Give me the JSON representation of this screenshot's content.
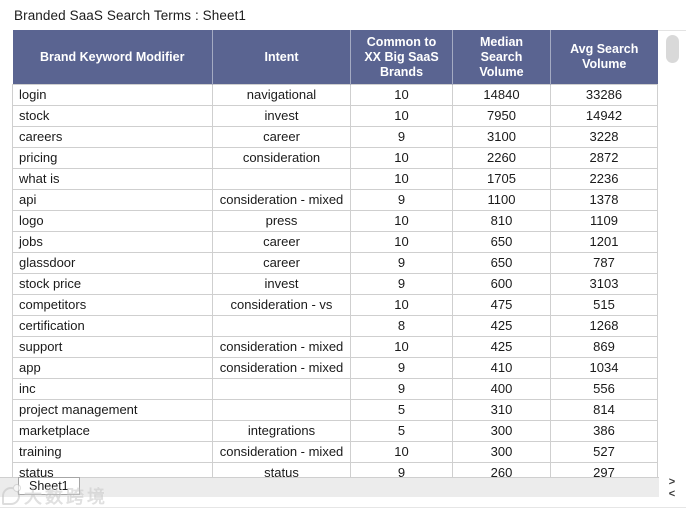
{
  "title": "Branded SaaS Search Terms : Sheet1",
  "table": {
    "columns": [
      "Brand Keyword Modifier",
      "Intent",
      "Common to XX Big SaaS Brands",
      "Median Search Volume",
      "Avg Search Volume"
    ],
    "column_slugs": [
      "brand-keyword-modifier",
      "intent",
      "common-to-xx-big-saas-brands",
      "median-search-volume",
      "avg-search-volume"
    ],
    "rows": [
      [
        "login",
        "navigational",
        "10",
        "14840",
        "33286"
      ],
      [
        "stock",
        "invest",
        "10",
        "7950",
        "14942"
      ],
      [
        "careers",
        "career",
        "9",
        "3100",
        "3228"
      ],
      [
        "pricing",
        "consideration",
        "10",
        "2260",
        "2872"
      ],
      [
        "what is",
        "",
        "10",
        "1705",
        "2236"
      ],
      [
        "api",
        "consideration - mixed",
        "9",
        "1100",
        "1378"
      ],
      [
        "logo",
        "press",
        "10",
        "810",
        "1109"
      ],
      [
        "jobs",
        "career",
        "10",
        "650",
        "1201"
      ],
      [
        "glassdoor",
        "career",
        "9",
        "650",
        "787"
      ],
      [
        "stock price",
        "invest",
        "9",
        "600",
        "3103"
      ],
      [
        "competitors",
        "consideration - vs",
        "10",
        "475",
        "515"
      ],
      [
        "certification",
        "",
        "8",
        "425",
        "1268"
      ],
      [
        "support",
        "consideration - mixed",
        "10",
        "425",
        "869"
      ],
      [
        "app",
        "consideration - mixed",
        "9",
        "410",
        "1034"
      ],
      [
        "inc",
        "",
        "9",
        "400",
        "556"
      ],
      [
        "project management",
        "",
        "5",
        "310",
        "814"
      ],
      [
        "marketplace",
        "integrations",
        "5",
        "300",
        "386"
      ],
      [
        "training",
        "consideration - mixed",
        "10",
        "300",
        "527"
      ],
      [
        "status",
        "status",
        "9",
        "260",
        "297"
      ]
    ]
  },
  "sheet_tab": "Sheet1",
  "scroll": {
    "right_arrow": ">",
    "left_arrow": "<"
  },
  "watermark": {
    "text": "大数跨境"
  },
  "colors": {
    "header_bg": "#5a6491",
    "header_text": "#ffffff",
    "row_border": "#cfcfcf",
    "bottom_bar_bg": "#ececec",
    "scroll_thumb": "#d9d9d9"
  }
}
